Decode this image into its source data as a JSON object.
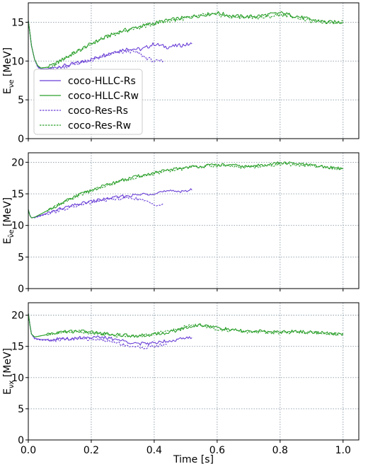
{
  "chart_data": [
    {
      "type": "line",
      "ylabel": "E",
      "ylabel_sub": "νe",
      "ylabel_unit": " [MeV]",
      "xlim": [
        0.0,
        1.05
      ],
      "ylim": [
        0,
        17.5
      ],
      "xticks": [
        0.0,
        0.2,
        0.4,
        0.6,
        0.8,
        1.0
      ],
      "yticks": [
        0,
        5,
        10,
        15
      ],
      "grid": true,
      "legend": {
        "placement": "lower-left",
        "entries": [
          "coco-HLLC-Rs",
          "coco-HLLC-Rw",
          "coco-Res-Rs",
          "coco-Res-Rw"
        ]
      },
      "series": [
        {
          "name": "coco-HLLC-Rs",
          "color": "#6a3fd6",
          "dash": "solid",
          "x": [
            0.0,
            0.01,
            0.02,
            0.03,
            0.04,
            0.06,
            0.08,
            0.1,
            0.13,
            0.16,
            0.2,
            0.24,
            0.28,
            0.32,
            0.36,
            0.4,
            0.44,
            0.48,
            0.52
          ],
          "y": [
            15.2,
            12.0,
            10.2,
            9.3,
            9.0,
            9.0,
            9.1,
            9.3,
            9.5,
            9.8,
            10.2,
            10.8,
            11.3,
            11.6,
            11.5,
            12.2,
            11.8,
            12.0,
            12.2
          ]
        },
        {
          "name": "coco-HLLC-Rw",
          "color": "#2ca02c",
          "dash": "solid",
          "x": [
            0.0,
            0.01,
            0.02,
            0.03,
            0.04,
            0.06,
            0.08,
            0.1,
            0.14,
            0.18,
            0.22,
            0.26,
            0.3,
            0.35,
            0.4,
            0.45,
            0.5,
            0.55,
            0.6,
            0.65,
            0.7,
            0.75,
            0.8,
            0.85,
            0.9,
            0.95,
            1.0
          ],
          "y": [
            15.2,
            12.0,
            10.2,
            9.4,
            9.1,
            9.2,
            9.5,
            10.0,
            10.9,
            11.8,
            12.6,
            13.3,
            13.9,
            14.4,
            14.9,
            15.3,
            15.6,
            15.9,
            16.2,
            15.8,
            15.7,
            15.9,
            16.2,
            15.8,
            15.3,
            15.0,
            15.0
          ]
        },
        {
          "name": "coco-Res-Rs",
          "color": "#6a3fd6",
          "dash": "dashed",
          "x": [
            0.0,
            0.01,
            0.02,
            0.03,
            0.04,
            0.06,
            0.08,
            0.1,
            0.13,
            0.16,
            0.2,
            0.24,
            0.28,
            0.32,
            0.35,
            0.38,
            0.41,
            0.43
          ],
          "y": [
            15.2,
            12.0,
            10.2,
            9.2,
            8.9,
            8.9,
            9.0,
            9.2,
            9.4,
            9.7,
            10.1,
            10.6,
            11.0,
            11.3,
            11.0,
            10.3,
            9.9,
            10.0
          ]
        },
        {
          "name": "coco-Res-Rw",
          "color": "#2ca02c",
          "dash": "dashed",
          "x": [
            0.0,
            0.01,
            0.02,
            0.03,
            0.04,
            0.06,
            0.08,
            0.1,
            0.14,
            0.18,
            0.22,
            0.26,
            0.3,
            0.35,
            0.4,
            0.45,
            0.5,
            0.55,
            0.6,
            0.65,
            0.7,
            0.75,
            0.8,
            0.85,
            0.9,
            0.95,
            1.0
          ],
          "y": [
            15.2,
            12.0,
            10.2,
            9.4,
            9.1,
            9.2,
            9.5,
            10.0,
            10.9,
            11.8,
            12.6,
            13.3,
            13.8,
            14.3,
            14.8,
            15.2,
            15.5,
            15.9,
            16.0,
            15.6,
            15.7,
            15.6,
            16.0,
            15.7,
            15.1,
            15.0,
            15.1
          ]
        }
      ]
    },
    {
      "type": "line",
      "ylabel": "E",
      "ylabel_sub": "ν̄e",
      "ylabel_unit": " [MeV]",
      "xlim": [
        0.0,
        1.05
      ],
      "ylim": [
        0,
        21.5
      ],
      "xticks": [
        0.0,
        0.2,
        0.4,
        0.6,
        0.8,
        1.0
      ],
      "yticks": [
        0,
        5,
        10,
        15,
        20
      ],
      "grid": true,
      "series": [
        {
          "name": "coco-HLLC-Rs",
          "color": "#6a3fd6",
          "dash": "solid",
          "x": [
            0.0,
            0.005,
            0.01,
            0.02,
            0.04,
            0.07,
            0.1,
            0.14,
            0.18,
            0.22,
            0.26,
            0.3,
            0.34,
            0.38,
            0.42,
            0.46,
            0.5,
            0.52
          ],
          "y": [
            12.5,
            11.6,
            11.2,
            11.3,
            11.6,
            12.1,
            12.6,
            13.1,
            13.6,
            14.0,
            14.3,
            14.6,
            14.8,
            15.0,
            15.3,
            15.4,
            15.5,
            15.6
          ]
        },
        {
          "name": "coco-HLLC-Rw",
          "color": "#2ca02c",
          "dash": "solid",
          "x": [
            0.0,
            0.005,
            0.01,
            0.02,
            0.04,
            0.07,
            0.1,
            0.15,
            0.2,
            0.25,
            0.3,
            0.35,
            0.4,
            0.45,
            0.5,
            0.55,
            0.6,
            0.65,
            0.7,
            0.75,
            0.8,
            0.85,
            0.9,
            0.95,
            1.0
          ],
          "y": [
            12.5,
            11.6,
            11.2,
            11.3,
            11.8,
            12.6,
            13.4,
            14.6,
            15.6,
            16.4,
            17.2,
            17.8,
            18.3,
            18.8,
            19.2,
            19.4,
            19.6,
            19.5,
            19.3,
            19.6,
            19.9,
            19.8,
            19.5,
            19.2,
            19.0
          ]
        },
        {
          "name": "coco-Res-Rs",
          "color": "#6a3fd6",
          "dash": "dashed",
          "x": [
            0.0,
            0.005,
            0.01,
            0.02,
            0.04,
            0.07,
            0.1,
            0.14,
            0.18,
            0.22,
            0.26,
            0.3,
            0.33,
            0.36,
            0.39,
            0.42,
            0.43
          ],
          "y": [
            12.5,
            11.6,
            11.2,
            11.2,
            11.5,
            12.0,
            12.4,
            12.9,
            13.4,
            13.8,
            14.1,
            14.3,
            14.4,
            14.0,
            13.5,
            13.2,
            13.3
          ]
        },
        {
          "name": "coco-Res-Rw",
          "color": "#2ca02c",
          "dash": "dashed",
          "x": [
            0.0,
            0.005,
            0.01,
            0.02,
            0.04,
            0.07,
            0.1,
            0.15,
            0.2,
            0.25,
            0.3,
            0.35,
            0.4,
            0.45,
            0.5,
            0.55,
            0.6,
            0.65,
            0.7,
            0.75,
            0.8,
            0.85,
            0.9,
            0.95,
            1.0
          ],
          "y": [
            12.5,
            11.6,
            11.2,
            11.3,
            11.8,
            12.6,
            13.4,
            14.6,
            15.5,
            16.3,
            17.1,
            17.7,
            18.2,
            18.6,
            19.1,
            19.3,
            19.5,
            19.3,
            19.2,
            19.4,
            19.7,
            19.6,
            19.4,
            19.1,
            19.0
          ]
        }
      ]
    },
    {
      "type": "line",
      "ylabel": "E",
      "ylabel_sub": "νx",
      "ylabel_unit": " [MeV]",
      "xlim": [
        0.0,
        1.05
      ],
      "ylim": [
        0,
        22
      ],
      "xticks": [
        0.0,
        0.2,
        0.4,
        0.6,
        0.8,
        1.0
      ],
      "xticklabels": [
        "0.0",
        "0.2",
        "0.4",
        "0.6",
        "0.8",
        "1.0"
      ],
      "yticks": [
        0,
        5,
        10,
        15,
        20
      ],
      "xlabel": "Time [s]",
      "grid": true,
      "series": [
        {
          "name": "coco-HLLC-Rs",
          "color": "#6a3fd6",
          "dash": "solid",
          "x": [
            0.0,
            0.005,
            0.01,
            0.02,
            0.04,
            0.08,
            0.12,
            0.16,
            0.2,
            0.24,
            0.28,
            0.32,
            0.36,
            0.39,
            0.42,
            0.46,
            0.5,
            0.52
          ],
          "y": [
            20.3,
            18.5,
            17.0,
            16.3,
            16.1,
            16.1,
            16.2,
            16.4,
            16.5,
            16.4,
            16.1,
            15.7,
            15.4,
            15.5,
            15.8,
            16.0,
            16.3,
            16.4
          ]
        },
        {
          "name": "coco-HLLC-Rw",
          "color": "#2ca02c",
          "dash": "solid",
          "x": [
            0.0,
            0.005,
            0.01,
            0.02,
            0.05,
            0.1,
            0.15,
            0.2,
            0.25,
            0.3,
            0.35,
            0.4,
            0.45,
            0.5,
            0.55,
            0.6,
            0.65,
            0.7,
            0.75,
            0.8,
            0.85,
            0.9,
            0.95,
            1.0
          ],
          "y": [
            20.3,
            18.5,
            17.0,
            16.5,
            16.8,
            17.3,
            17.5,
            17.3,
            17.0,
            16.8,
            16.7,
            16.9,
            17.3,
            18.0,
            18.5,
            18.0,
            17.6,
            17.4,
            17.4,
            17.3,
            17.4,
            17.3,
            17.1,
            17.0
          ]
        },
        {
          "name": "coco-Res-Rs",
          "color": "#6a3fd6",
          "dash": "dashed",
          "x": [
            0.0,
            0.005,
            0.01,
            0.02,
            0.04,
            0.08,
            0.12,
            0.16,
            0.2,
            0.24,
            0.28,
            0.31,
            0.34,
            0.37,
            0.4,
            0.42,
            0.44
          ],
          "y": [
            20.3,
            18.5,
            17.0,
            16.2,
            16.0,
            16.0,
            16.1,
            16.2,
            16.2,
            16.0,
            15.6,
            15.2,
            14.9,
            14.8,
            15.0,
            15.2,
            15.3
          ]
        },
        {
          "name": "coco-Res-Rw",
          "color": "#2ca02c",
          "dash": "dashed",
          "x": [
            0.0,
            0.005,
            0.01,
            0.02,
            0.05,
            0.1,
            0.15,
            0.2,
            0.25,
            0.3,
            0.35,
            0.4,
            0.45,
            0.5,
            0.55,
            0.6,
            0.65,
            0.7,
            0.75,
            0.8,
            0.85,
            0.9,
            0.95,
            1.0
          ],
          "y": [
            20.3,
            18.5,
            17.0,
            16.5,
            16.8,
            17.2,
            17.4,
            17.2,
            16.9,
            16.7,
            16.7,
            17.0,
            17.5,
            18.2,
            18.4,
            17.8,
            17.5,
            17.3,
            17.3,
            17.2,
            17.3,
            17.2,
            17.0,
            17.0
          ]
        }
      ]
    }
  ]
}
